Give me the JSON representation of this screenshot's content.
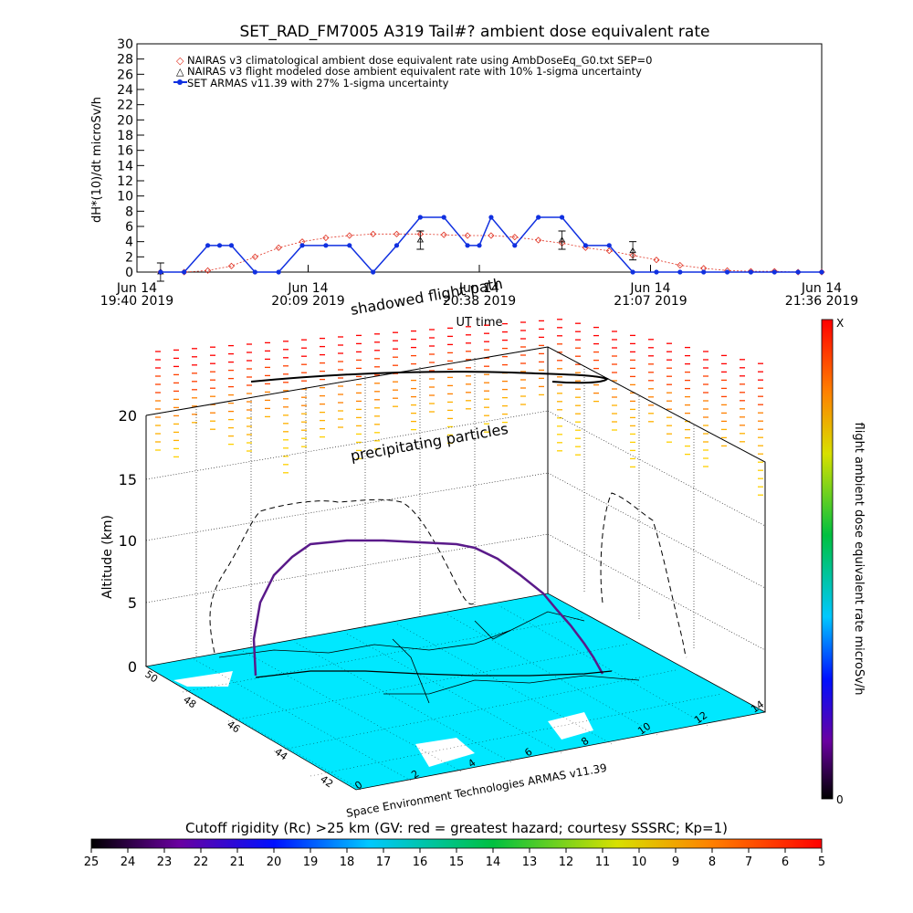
{
  "colors": {
    "nairas_clim": "#e03020",
    "armas": "#1030e0",
    "ocean": "#00e8ff",
    "land": "#ffffff"
  },
  "top_chart": {
    "title": "SET_RAD_FM7005   A319 Tail#? ambient dose equivalent rate",
    "ylabel": "dH*(10)/dt microSv/h",
    "xlabel": "UT time",
    "yticks": [
      "0",
      "2",
      "4",
      "6",
      "8",
      "10",
      "12",
      "14",
      "16",
      "18",
      "20",
      "22",
      "24",
      "26",
      "28",
      "30"
    ],
    "xticks": [
      {
        "line1": "Jun 14",
        "line2": "19:40 2019"
      },
      {
        "line1": "Jun 14",
        "line2": "20:09 2019"
      },
      {
        "line1": "Jun 14",
        "line2": "20:38 2019"
      },
      {
        "line1": "Jun 14",
        "line2": "21:07 2019"
      },
      {
        "line1": "Jun 14",
        "line2": "21:36 2019"
      }
    ],
    "legend": [
      "NAIRAS v3 climatological ambient dose equivalent rate using AmbDoseEq_G0.txt SEP=0",
      "NAIRAS v3 flight modeled dose ambient equivalent rate with 10% 1-sigma uncertainty",
      "SET ARMAS v11.39 with 27% 1-sigma uncertainty"
    ]
  },
  "chart_data": [
    {
      "type": "line",
      "title": "SET_RAD_FM7005   A319 Tail#? ambient dose equivalent rate",
      "xlabel": "UT time",
      "ylabel": "dH*(10)/dt microSv/h",
      "xlim": [
        0,
        116
      ],
      "ylim": [
        0,
        30
      ],
      "x_unit": "minutes after Jun 14 19:40 2019",
      "series": [
        {
          "name": "NAIRAS v3 climatological ambient dose equivalent rate using AmbDoseEq_G0.txt SEP=0",
          "x": [
            4,
            8,
            12,
            16,
            20,
            24,
            28,
            32,
            36,
            40,
            44,
            48,
            52,
            56,
            60,
            64,
            68,
            72,
            76,
            80,
            84,
            88,
            92,
            96,
            100,
            104,
            108,
            112,
            116
          ],
          "y": [
            0,
            0,
            0.2,
            0.8,
            2.0,
            3.2,
            4.0,
            4.5,
            4.8,
            5.0,
            5.0,
            5.0,
            4.9,
            4.8,
            4.8,
            4.6,
            4.2,
            3.8,
            3.2,
            2.8,
            2.2,
            1.6,
            0.9,
            0.5,
            0.2,
            0.1,
            0.1,
            0,
            0
          ]
        },
        {
          "name": "NAIRAS v3 flight modeled dose ambient equivalent rate with 10% 1-sigma uncertainty",
          "x": [
            4,
            48,
            72,
            84
          ],
          "y": [
            0,
            4.2,
            4.2,
            2.8
          ]
        },
        {
          "name": "SET ARMAS v11.39 with 27% 1-sigma uncertainty",
          "x": [
            4,
            8,
            12,
            14,
            16,
            20,
            24,
            28,
            32,
            36,
            40,
            44,
            48,
            52,
            56,
            58,
            60,
            64,
            68,
            72,
            76,
            80,
            84,
            88,
            92,
            96,
            100,
            104,
            108,
            112,
            116
          ],
          "y": [
            0,
            0,
            3.5,
            3.5,
            3.5,
            0,
            0,
            3.5,
            3.5,
            3.5,
            0,
            3.5,
            7.2,
            7.2,
            3.5,
            3.5,
            7.2,
            3.5,
            7.2,
            7.2,
            3.5,
            3.5,
            0,
            0,
            0,
            0,
            0,
            0,
            0,
            0,
            0
          ]
        }
      ]
    }
  ],
  "plot3d": {
    "title_shadow": "shadowed flight path",
    "label_particles": "precipitating particles",
    "zlabel": "Altitude (km)",
    "zticks": [
      "0",
      "5",
      "10",
      "15",
      "20"
    ],
    "lat_ticks": [
      "50",
      "48",
      "46",
      "44",
      "42"
    ],
    "lon_ticks": [
      "0",
      "2",
      "4",
      "6",
      "8",
      "10",
      "12",
      "14"
    ],
    "credit": "Space Environment Technologies ARMAS v11.39"
  },
  "colorbar_right": {
    "label": "flight ambient dose equivalent rate microSv/h",
    "top": "X",
    "bottom": "0"
  },
  "colorbar_bottom": {
    "label": "Cutoff rigidity (Rc) >25 km (GV: red = greatest hazard; courtesy SSSRC; Kp=1)",
    "ticks": [
      "25",
      "24",
      "23",
      "22",
      "21",
      "20",
      "19",
      "18",
      "17",
      "16",
      "15",
      "14",
      "13",
      "12",
      "11",
      "10",
      "9",
      "8",
      "7",
      "6",
      "5"
    ]
  }
}
